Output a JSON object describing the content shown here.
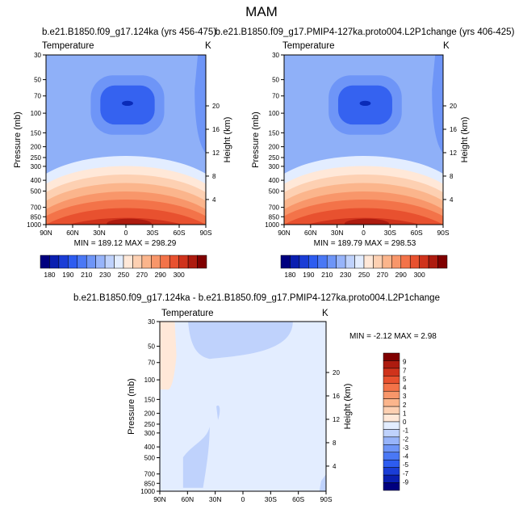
{
  "page": {
    "title": "MAM"
  },
  "palette": {
    "cold_levels": [
      "#00007f",
      "#0a1fb0",
      "#1a3dd6",
      "#2d5cf0",
      "#4a78f5",
      "#6e95f7",
      "#97b4fa",
      "#bfd2fc",
      "#e3edff"
    ],
    "warm_levels": [
      "#ffe8d8",
      "#fdd0b2",
      "#fbb58c",
      "#f8966a",
      "#f37349",
      "#e8512f",
      "#cf331c",
      "#ad1b0f",
      "#800000"
    ],
    "background_cool": "#8fb0f8",
    "core_cold": "#3562f0",
    "core_coldest": "#0a2bb8"
  },
  "chart_data": [
    {
      "type": "heatmap",
      "panel": "left",
      "title": "b.e21.B1850.f09_g17.124ka (yrs 456-475)",
      "corner_left": "Temperature",
      "corner_right": "K",
      "ylabel": "Pressure (mb)",
      "y2label": "Height (km)",
      "x_ticks": [
        "90N",
        "60N",
        "30N",
        "0",
        "30S",
        "60S",
        "90S"
      ],
      "y_ticks": [
        "30",
        "50",
        "70",
        "100",
        "150",
        "200",
        "250",
        "300",
        "400",
        "500",
        "700",
        "850",
        "1000"
      ],
      "y2_ticks": [
        "20",
        "16",
        "12",
        "8",
        "4"
      ],
      "min": 189.12,
      "max": 298.29,
      "stats_text": "MIN = 189.12   MAX = 298.29",
      "colorbar_labels": [
        "180",
        "190",
        "210",
        "230",
        "250",
        "270",
        "290",
        "300"
      ]
    },
    {
      "type": "heatmap",
      "panel": "right",
      "title": "b.e21.B1850.f09_g17.PMIP4-127ka.proto004.L2P1change (yrs 406-425)",
      "corner_left": "Temperature",
      "corner_right": "K",
      "ylabel": "Pressure (mb)",
      "y2label": "Height (km)",
      "x_ticks": [
        "90N",
        "60N",
        "30N",
        "0",
        "30S",
        "60S",
        "90S"
      ],
      "y_ticks": [
        "30",
        "50",
        "70",
        "100",
        "150",
        "200",
        "250",
        "300",
        "400",
        "500",
        "700",
        "850",
        "1000"
      ],
      "y2_ticks": [
        "20",
        "16",
        "12",
        "8",
        "4"
      ],
      "min": 189.79,
      "max": 298.53,
      "stats_text": "MIN = 189.79   MAX = 298.53",
      "colorbar_labels": [
        "180",
        "190",
        "210",
        "230",
        "250",
        "270",
        "290",
        "300"
      ]
    },
    {
      "type": "heatmap",
      "panel": "difference",
      "title": "b.e21.B1850.f09_g17.124ka - b.e21.B1850.f09_g17.PMIP4-127ka.proto004.L2P1change",
      "corner_left": "Temperature",
      "corner_right": "K",
      "ylabel": "Pressure (mb)",
      "y2label": "Height (km)",
      "x_ticks": [
        "90N",
        "60N",
        "30N",
        "0",
        "30S",
        "60S",
        "90S"
      ],
      "y_ticks": [
        "30",
        "50",
        "70",
        "100",
        "150",
        "200",
        "250",
        "300",
        "400",
        "500",
        "700",
        "850",
        "1000"
      ],
      "y2_ticks": [
        "20",
        "16",
        "12",
        "8",
        "4"
      ],
      "min": -2.12,
      "max": 2.98,
      "stats_text": "MIN = -2.12   MAX =  2.98",
      "colorbar_labels": [
        "9",
        "7",
        "5",
        "4",
        "3",
        "2",
        "1",
        "0",
        "-1",
        "-2",
        "-3",
        "-4",
        "-5",
        "-7",
        "-9"
      ]
    }
  ]
}
